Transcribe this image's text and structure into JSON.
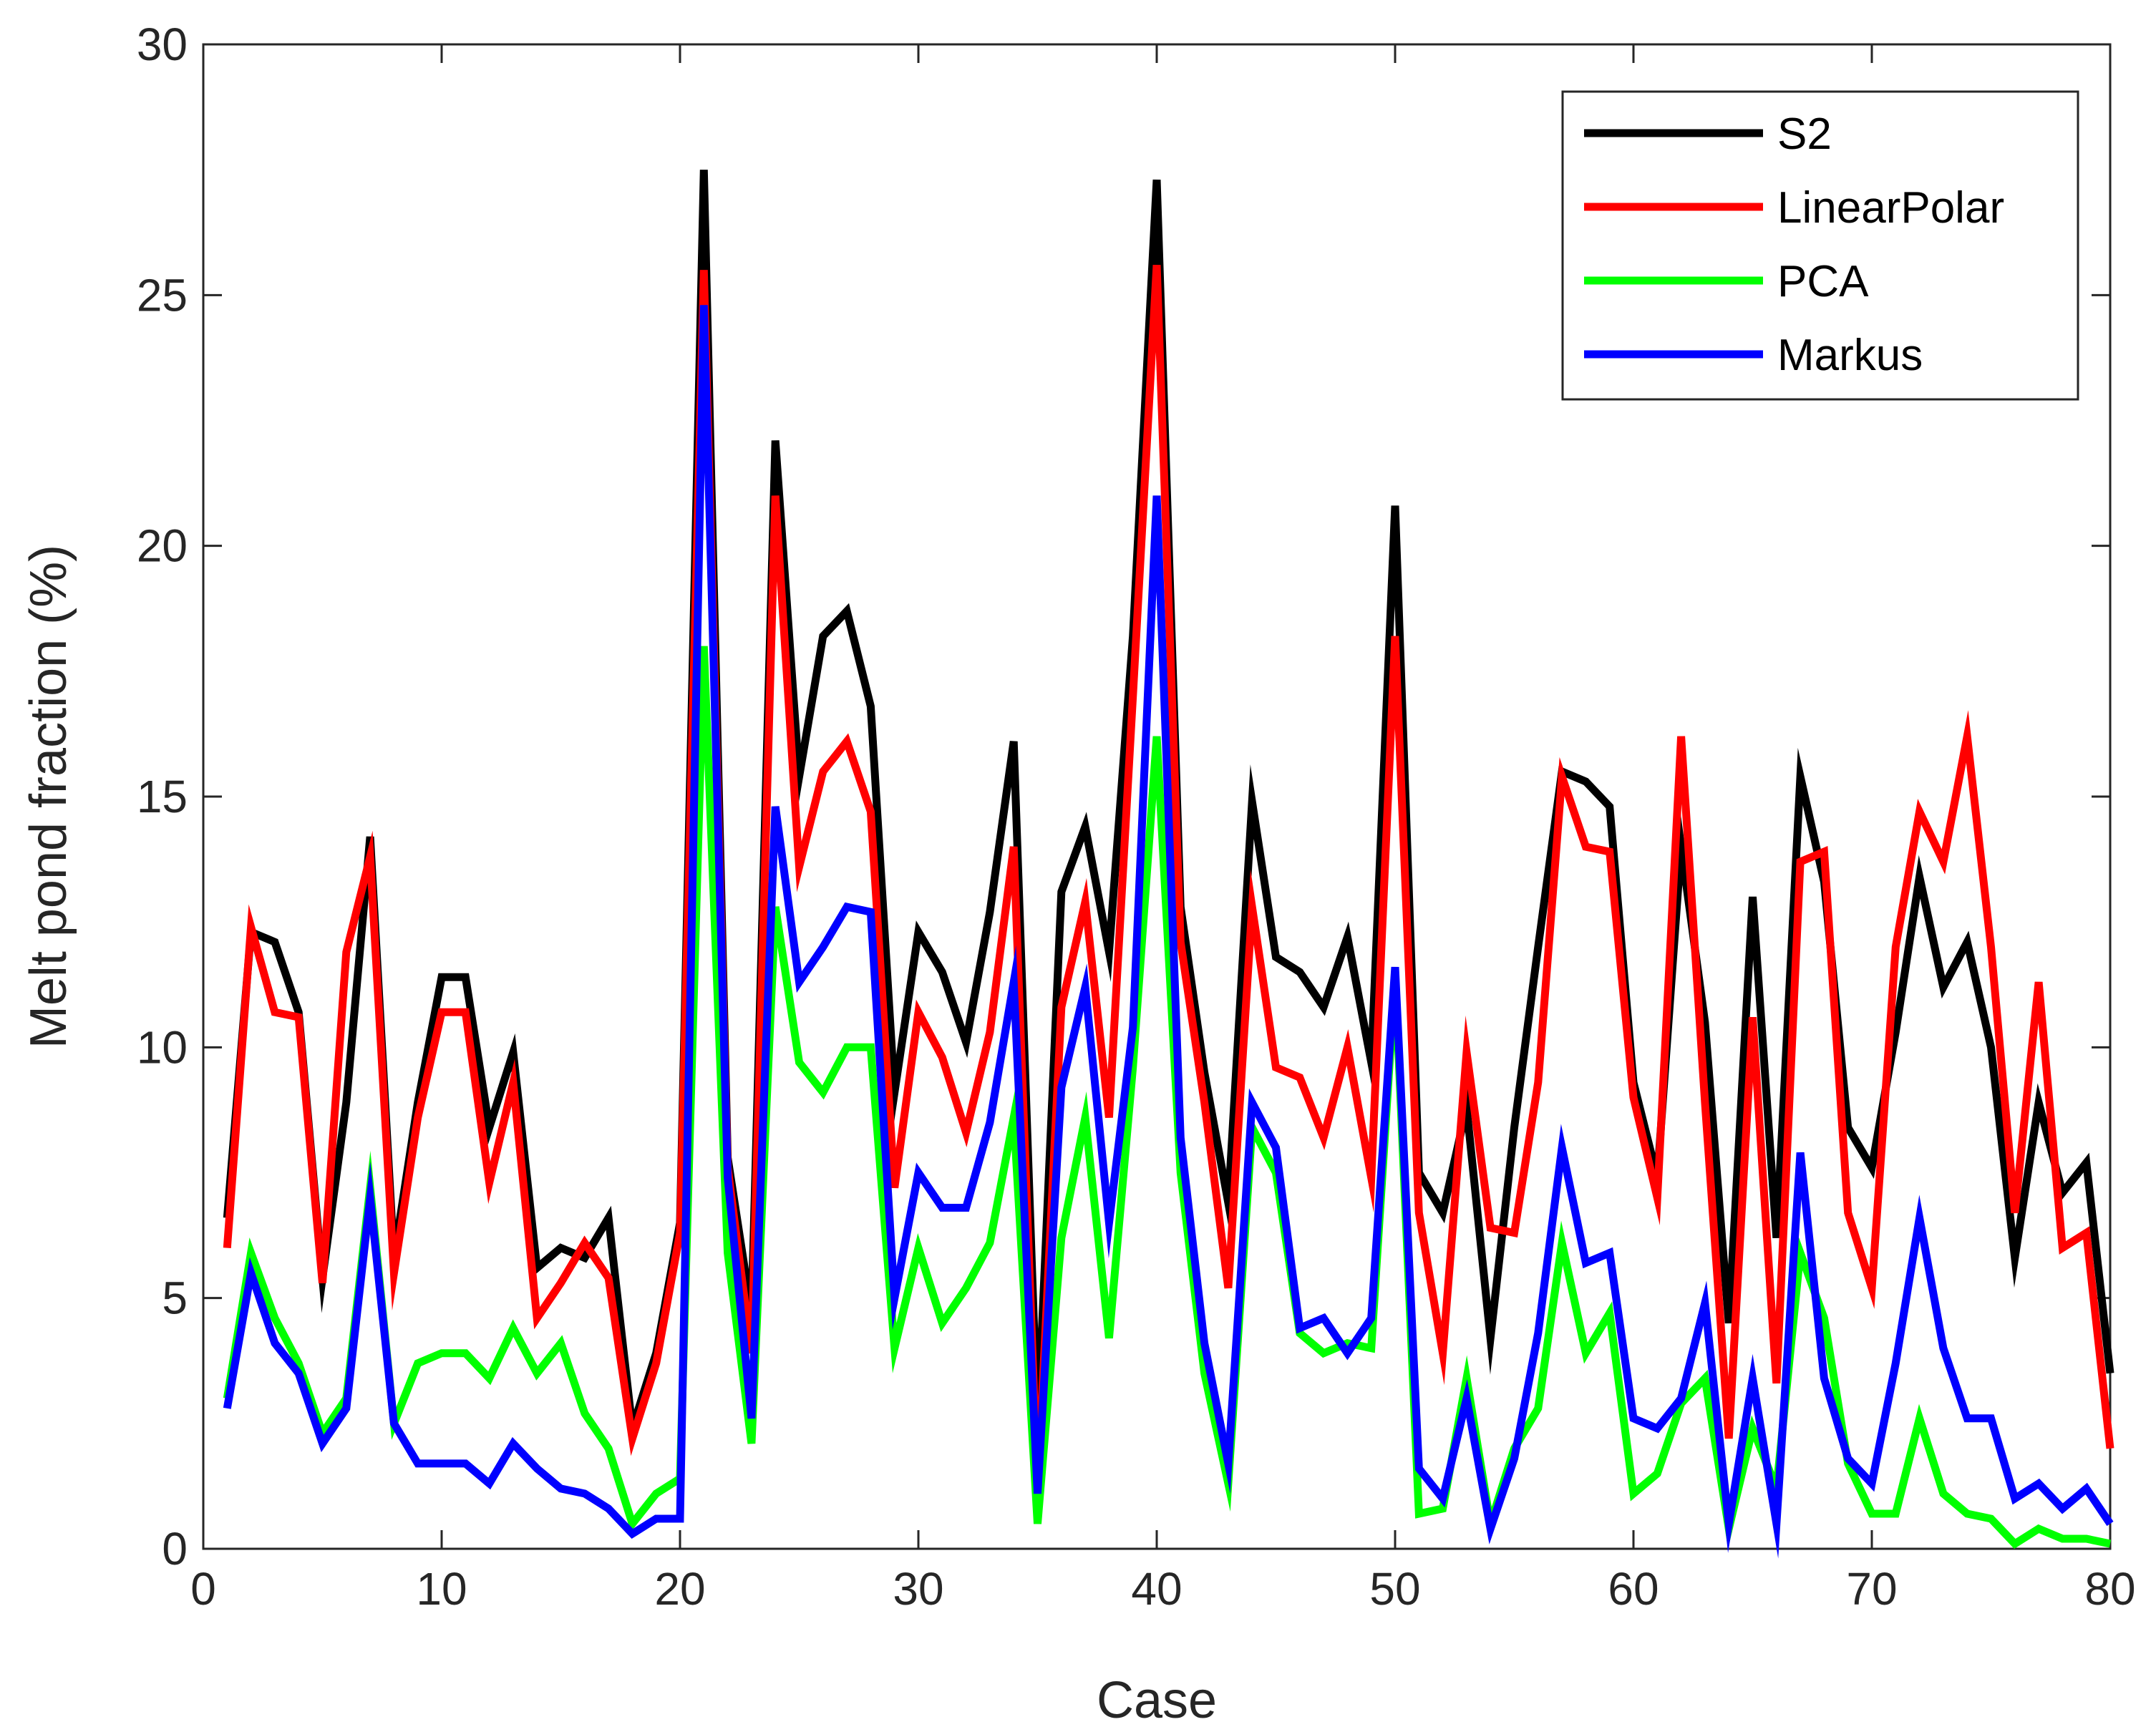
{
  "chart_data": {
    "type": "line",
    "title": "",
    "xlabel": "Case",
    "ylabel": "Melt pond fraction (%)",
    "xlim": [
      0,
      80
    ],
    "ylim": [
      0,
      30
    ],
    "xticks": [
      0,
      10,
      20,
      30,
      40,
      50,
      60,
      70,
      80
    ],
    "yticks": [
      0,
      5,
      10,
      15,
      20,
      25,
      30
    ],
    "grid": false,
    "legend_position": "top-right",
    "x": [
      1,
      2,
      3,
      4,
      5,
      6,
      7,
      8,
      9,
      10,
      11,
      12,
      13,
      14,
      15,
      16,
      17,
      18,
      19,
      20,
      21,
      22,
      23,
      24,
      25,
      26,
      27,
      28,
      29,
      30,
      31,
      32,
      33,
      34,
      35,
      36,
      37,
      38,
      39,
      40,
      41,
      42,
      43,
      44,
      45,
      46,
      47,
      48,
      49,
      50,
      51,
      52,
      53,
      54,
      55,
      56,
      57,
      58,
      59,
      60,
      61,
      62,
      63,
      64,
      65,
      66,
      67,
      68,
      69,
      70,
      71,
      72,
      73,
      74,
      75,
      76,
      77,
      78,
      79,
      80
    ],
    "series": [
      {
        "name": "S2",
        "color": "#000000",
        "values": [
          6.6,
          12.3,
          12.1,
          10.7,
          5.4,
          8.9,
          14.2,
          5.8,
          8.9,
          11.4,
          11.4,
          8.4,
          9.9,
          5.6,
          6.0,
          5.8,
          6.6,
          2.4,
          3.9,
          6.5,
          27.5,
          7.8,
          4.7,
          22.1,
          15.4,
          18.2,
          18.7,
          16.8,
          9.1,
          12.3,
          11.5,
          10.1,
          12.7,
          16.1,
          2.4,
          13.1,
          14.4,
          11.9,
          18.2,
          27.3,
          12.8,
          9.5,
          6.9,
          14.9,
          11.8,
          11.5,
          10.8,
          12.2,
          9.7,
          20.8,
          7.5,
          6.7,
          8.8,
          4.2,
          8.4,
          12.0,
          15.5,
          15.3,
          14.8,
          9.3,
          7.4,
          14.0,
          10.5,
          4.5,
          13.0,
          6.2,
          15.4,
          13.3,
          8.4,
          7.6,
          10.3,
          13.4,
          11.2,
          12.1,
          10.0,
          5.8,
          8.9,
          7.1,
          7.7,
          3.5
        ]
      },
      {
        "name": "LinearPolar",
        "color": "#ff0000",
        "values": [
          6.0,
          12.4,
          10.7,
          10.6,
          5.3,
          11.9,
          13.8,
          5.5,
          8.6,
          10.7,
          10.7,
          7.3,
          9.3,
          4.6,
          5.3,
          6.1,
          5.4,
          2.2,
          3.7,
          6.3,
          25.5,
          7.6,
          3.9,
          21.0,
          13.6,
          15.5,
          16.1,
          14.7,
          7.2,
          10.7,
          9.8,
          8.3,
          10.3,
          14.0,
          1.2,
          10.8,
          12.9,
          8.6,
          17.0,
          25.6,
          12.1,
          8.9,
          5.2,
          12.8,
          9.6,
          9.4,
          8.2,
          10.0,
          7.4,
          18.2,
          6.7,
          3.9,
          9.9,
          6.4,
          6.3,
          9.3,
          15.4,
          14.0,
          13.9,
          9.0,
          7.0,
          16.2,
          8.9,
          2.2,
          10.6,
          3.3,
          13.7,
          13.9,
          6.7,
          5.2,
          12.0,
          14.7,
          13.7,
          16.2,
          12.0,
          6.7,
          11.3,
          6.0,
          6.3,
          2.0
        ]
      },
      {
        "name": "PCA",
        "color": "#00ff00",
        "values": [
          3.0,
          5.9,
          4.6,
          3.7,
          2.3,
          3.0,
          7.2,
          2.5,
          3.7,
          3.9,
          3.9,
          3.4,
          4.4,
          3.5,
          4.1,
          2.7,
          2.0,
          0.5,
          1.1,
          1.4,
          18.0,
          5.9,
          2.1,
          12.8,
          9.7,
          9.1,
          10.0,
          10.0,
          4.0,
          6.0,
          4.5,
          5.2,
          6.1,
          8.6,
          0.5,
          6.2,
          8.6,
          4.2,
          9.6,
          16.2,
          7.5,
          3.5,
          1.3,
          8.4,
          7.5,
          4.3,
          3.9,
          4.1,
          4.0,
          11.4,
          0.7,
          0.8,
          3.4,
          0.5,
          2.0,
          2.8,
          6.1,
          3.9,
          4.7,
          1.1,
          1.5,
          2.9,
          3.4,
          0.4,
          2.4,
          1.2,
          5.9,
          4.6,
          1.7,
          0.7,
          0.7,
          2.6,
          1.1,
          0.7,
          0.6,
          0.1,
          0.4,
          0.2,
          0.2,
          0.1
        ]
      },
      {
        "name": "Markus",
        "color": "#0000ff",
        "values": [
          2.8,
          5.5,
          4.1,
          3.5,
          2.1,
          2.8,
          7.0,
          2.5,
          1.7,
          1.7,
          1.7,
          1.3,
          2.1,
          1.6,
          1.2,
          1.1,
          0.8,
          0.3,
          0.6,
          0.6,
          24.8,
          7.4,
          2.6,
          14.8,
          11.3,
          12.0,
          12.8,
          12.7,
          5.0,
          7.5,
          6.8,
          6.8,
          8.5,
          11.3,
          1.1,
          9.2,
          11.2,
          6.5,
          10.4,
          21.0,
          8.2,
          4.1,
          1.7,
          8.9,
          8.0,
          4.4,
          4.6,
          3.9,
          4.6,
          11.6,
          1.6,
          1.0,
          3.0,
          0.4,
          1.8,
          4.3,
          8.0,
          5.7,
          5.9,
          2.6,
          2.4,
          3.0,
          4.9,
          0.5,
          3.4,
          0.5,
          7.9,
          3.4,
          1.8,
          1.3,
          3.7,
          6.6,
          4.0,
          2.6,
          2.6,
          1.0,
          1.3,
          0.8,
          1.2,
          0.5
        ]
      }
    ]
  }
}
